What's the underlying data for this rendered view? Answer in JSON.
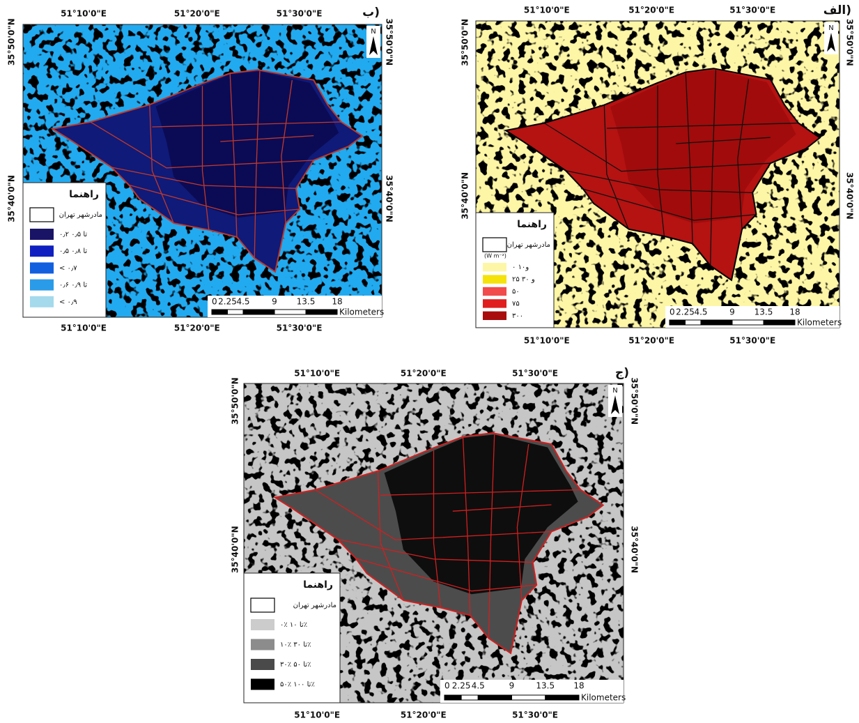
{
  "panels": [
    {
      "label": "الف)",
      "lon_labels": [
        "51°10'0\"E",
        "51°20'0\"E",
        "51°30'0\"E"
      ],
      "lat_labels": [
        "35°50'0\"N",
        "35°40'0\"N"
      ],
      "north": "N",
      "legend": {
        "title": "راهنما",
        "boundary": "مادرشهر تهران",
        "unit": "(W m⁻²)",
        "items": [
          {
            "label": "۰ و۱۰",
            "color": "#fdf6a6"
          },
          {
            "label": "۲۵ و ۳۰",
            "color": "#f5e20a"
          },
          {
            "label": "۵۰",
            "color": "#f24b4b"
          },
          {
            "label": "۷۵",
            "color": "#e01e1e"
          },
          {
            "label": "۳۰۰",
            "color": "#a80c0c"
          }
        ]
      },
      "scale": {
        "ticks": [
          0,
          2.25,
          4.5,
          9,
          13.5,
          18
        ],
        "unit": "Kilometers"
      }
    },
    {
      "label": "ب)",
      "lon_labels": [
        "51°10'0\"E",
        "51°20'0\"E",
        "51°30'0\"E"
      ],
      "lat_labels": [
        "35°50'0\"N",
        "35°40'0\"N"
      ],
      "north": "N",
      "legend": {
        "title": "راهنما",
        "boundary": "مادرشهر تهران",
        "items": [
          {
            "label": "۰٫۲ تا ۰٫۵",
            "color": "#1a1466"
          },
          {
            "label": "۰٫۵ تا ۰٫۸",
            "color": "#1020c0"
          },
          {
            "label": "< ۰٫۷",
            "color": "#1160e0"
          },
          {
            "label": "۰٫۶ تا ۰٫۹",
            "color": "#2a9be8"
          },
          {
            "label": "< ۰٫۹",
            "color": "#a5d9ec"
          }
        ]
      },
      "scale": {
        "ticks": [
          0,
          2.25,
          4.5,
          9,
          13.5,
          18
        ],
        "unit": "Kilometers"
      }
    },
    {
      "label": "ج)",
      "lon_labels": [
        "51°10'0\"E",
        "51°20'0\"E",
        "51°30'0\"E"
      ],
      "lat_labels": [
        "35°50'0\"N",
        "35°40'0\"N"
      ],
      "north": "N",
      "legend": {
        "title": "راهنما",
        "boundary": "مادرشهر تهران",
        "items": [
          {
            "label": "۰٪ تا ۱۰٪",
            "color": "#cccccc"
          },
          {
            "label": "۱۰٪ تا ۳۰٪",
            "color": "#8c8c8c"
          },
          {
            "label": "۳۰٪ تا ۵۰٪",
            "color": "#4a4a4a"
          },
          {
            "label": "۵۰٪ تا ۱۰۰٪",
            "color": "#000000"
          }
        ]
      },
      "scale": {
        "ticks": [
          0,
          2.25,
          4.5,
          9,
          13.5,
          18
        ],
        "unit": "Kilometers"
      }
    }
  ]
}
